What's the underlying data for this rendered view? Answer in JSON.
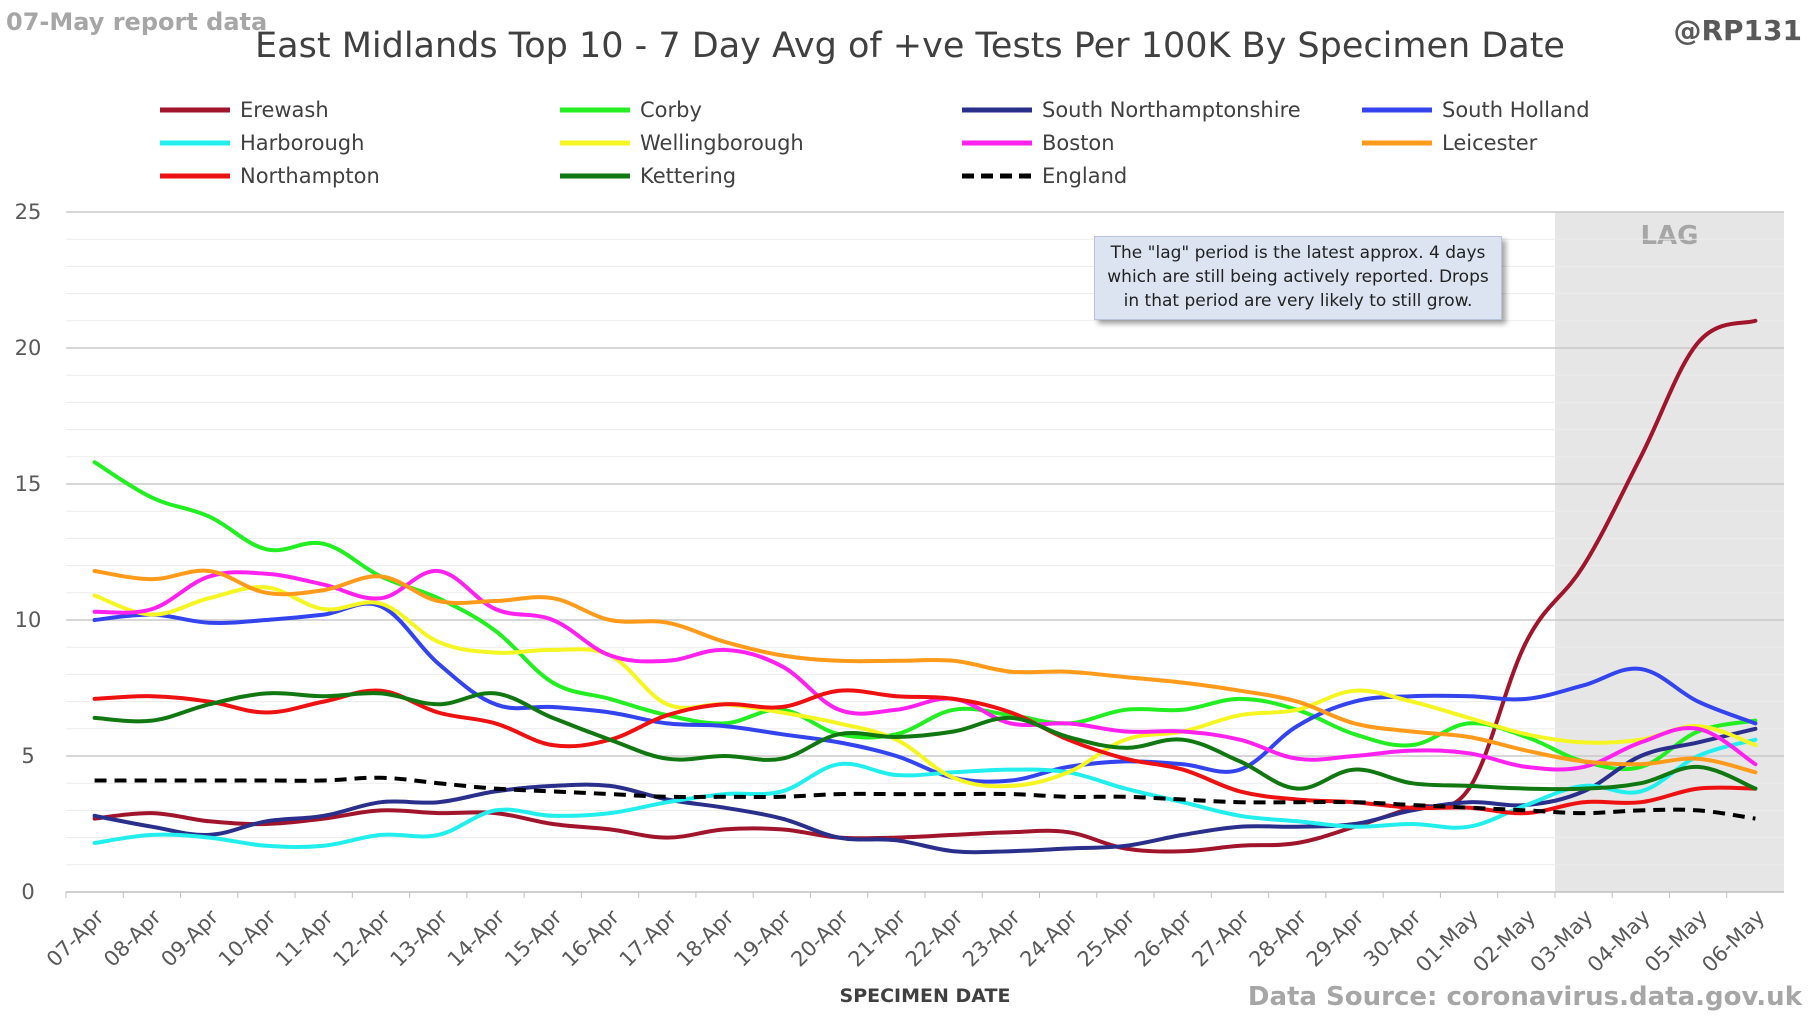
{
  "header": {
    "report_note": "07-May report data",
    "handle": "@RP131",
    "title": "East Midlands Top 10 - 7 Day Avg of +ve Tests Per 100K By Specimen Date",
    "source": "Data Source: coronavirus.data.gov.uk"
  },
  "annotation": {
    "text": "The \"lag\" period is the latest approx. 4 days which are still being actively reported. Drops in that period are very likely to still grow."
  },
  "lag_label": "LAG",
  "colors": {
    "Erewash": "#a0142c",
    "Corby": "#22ee22",
    "South Northamptonshire": "#2b2f8c",
    "South Holland": "#3344ee",
    "Harborough": "#22eeee",
    "Wellingborough": "#f5f522",
    "Boston": "#ff22ee",
    "Leicester": "#ff9a1a",
    "Northampton": "#ee1111",
    "Kettering": "#117711",
    "England": "#000000",
    "lag_shade": "#e6e6e6",
    "grid": "#d9d9d9"
  },
  "chart_data": {
    "type": "line",
    "title": "East Midlands Top 10 - 7 Day Avg of +ve Tests Per 100K By Specimen Date",
    "xlabel": "SPECIMEN DATE",
    "ylabel": "",
    "ylim": [
      0,
      25
    ],
    "yticks": [
      0,
      5,
      10,
      15,
      20,
      25
    ],
    "grid": true,
    "legend_position": "top",
    "lag_start": "03-May",
    "categories": [
      "07-Apr",
      "08-Apr",
      "09-Apr",
      "10-Apr",
      "11-Apr",
      "12-Apr",
      "13-Apr",
      "14-Apr",
      "15-Apr",
      "16-Apr",
      "17-Apr",
      "18-Apr",
      "19-Apr",
      "20-Apr",
      "21-Apr",
      "22-Apr",
      "23-Apr",
      "24-Apr",
      "25-Apr",
      "26-Apr",
      "27-Apr",
      "28-Apr",
      "29-Apr",
      "30-Apr",
      "01-May",
      "02-May",
      "03-May",
      "04-May",
      "05-May",
      "06-May"
    ],
    "series": [
      {
        "name": "Erewash",
        "values": [
          2.7,
          2.9,
          2.6,
          2.5,
          2.7,
          3.0,
          2.9,
          2.9,
          2.5,
          2.3,
          2.0,
          2.3,
          2.3,
          2.0,
          2.0,
          2.1,
          2.2,
          2.2,
          1.6,
          1.5,
          1.7,
          1.8,
          2.4,
          3.1,
          3.8,
          9.2,
          12.0,
          16.0,
          20.2,
          21.0
        ]
      },
      {
        "name": "Corby",
        "values": [
          15.8,
          14.5,
          13.8,
          12.6,
          12.8,
          11.6,
          10.8,
          9.6,
          7.7,
          7.1,
          6.5,
          6.2,
          6.7,
          5.8,
          5.8,
          6.7,
          6.5,
          6.2,
          6.7,
          6.7,
          7.1,
          6.7,
          5.8,
          5.4,
          6.2,
          5.7,
          4.8,
          4.6,
          5.9,
          6.3
        ]
      },
      {
        "name": "South Northamptonshire",
        "values": [
          2.8,
          2.4,
          2.1,
          2.6,
          2.8,
          3.3,
          3.3,
          3.7,
          3.9,
          3.9,
          3.4,
          3.1,
          2.7,
          2.0,
          1.9,
          1.5,
          1.5,
          1.6,
          1.7,
          2.1,
          2.4,
          2.4,
          2.5,
          3.0,
          3.3,
          3.2,
          3.7,
          5.0,
          5.5,
          6.0
        ]
      },
      {
        "name": "South Holland",
        "values": [
          10.0,
          10.2,
          9.9,
          10.0,
          10.2,
          10.5,
          8.4,
          6.9,
          6.8,
          6.6,
          6.2,
          6.1,
          5.8,
          5.5,
          5.0,
          4.2,
          4.1,
          4.6,
          4.8,
          4.7,
          4.5,
          6.1,
          7.0,
          7.2,
          7.2,
          7.1,
          7.6,
          8.2,
          7.0,
          6.2
        ]
      },
      {
        "name": "Harborough",
        "values": [
          1.8,
          2.1,
          2.0,
          1.7,
          1.7,
          2.1,
          2.1,
          3.0,
          2.8,
          2.9,
          3.3,
          3.6,
          3.7,
          4.7,
          4.3,
          4.4,
          4.5,
          4.4,
          3.8,
          3.3,
          2.8,
          2.6,
          2.4,
          2.5,
          2.4,
          3.2,
          3.9,
          3.7,
          5.0,
          5.6
        ]
      },
      {
        "name": "Wellingborough",
        "values": [
          10.9,
          10.2,
          10.8,
          11.2,
          10.4,
          10.6,
          9.2,
          8.8,
          8.9,
          8.7,
          6.9,
          6.9,
          6.6,
          6.2,
          5.6,
          4.2,
          3.9,
          4.4,
          5.6,
          5.9,
          6.5,
          6.7,
          7.4,
          7.0,
          6.4,
          5.8,
          5.5,
          5.6,
          6.1,
          5.4
        ]
      },
      {
        "name": "Boston",
        "values": [
          10.3,
          10.4,
          11.6,
          11.7,
          11.3,
          10.8,
          11.8,
          10.4,
          10.0,
          8.7,
          8.5,
          8.9,
          8.3,
          6.7,
          6.7,
          7.1,
          6.2,
          6.2,
          5.9,
          5.9,
          5.6,
          4.9,
          5.0,
          5.2,
          5.1,
          4.6,
          4.6,
          5.5,
          6.0,
          4.7
        ]
      },
      {
        "name": "Leicester",
        "values": [
          11.8,
          11.5,
          11.8,
          11.0,
          11.1,
          11.6,
          10.7,
          10.7,
          10.8,
          10.0,
          9.9,
          9.2,
          8.7,
          8.5,
          8.5,
          8.5,
          8.1,
          8.1,
          7.9,
          7.7,
          7.4,
          7.0,
          6.2,
          5.9,
          5.7,
          5.2,
          4.8,
          4.7,
          4.9,
          4.4
        ]
      },
      {
        "name": "Northampton",
        "values": [
          7.1,
          7.2,
          7.0,
          6.6,
          7.0,
          7.4,
          6.6,
          6.2,
          5.4,
          5.6,
          6.5,
          6.9,
          6.8,
          7.4,
          7.2,
          7.1,
          6.6,
          5.6,
          4.9,
          4.5,
          3.7,
          3.4,
          3.3,
          3.1,
          3.1,
          2.9,
          3.3,
          3.3,
          3.8,
          3.8
        ]
      },
      {
        "name": "Kettering",
        "values": [
          6.4,
          6.3,
          6.9,
          7.3,
          7.2,
          7.3,
          6.9,
          7.3,
          6.4,
          5.6,
          4.9,
          5.0,
          4.9,
          5.8,
          5.7,
          5.9,
          6.4,
          5.7,
          5.3,
          5.6,
          4.8,
          3.8,
          4.5,
          4.0,
          3.9,
          3.8,
          3.8,
          4.0,
          4.6,
          3.8
        ]
      },
      {
        "name": "England",
        "values": [
          4.1,
          4.1,
          4.1,
          4.1,
          4.1,
          4.2,
          4.0,
          3.8,
          3.7,
          3.6,
          3.5,
          3.5,
          3.5,
          3.6,
          3.6,
          3.6,
          3.6,
          3.5,
          3.5,
          3.4,
          3.3,
          3.3,
          3.3,
          3.2,
          3.1,
          3.0,
          2.9,
          3.0,
          3.0,
          2.7
        ],
        "dashed": true
      }
    ]
  }
}
